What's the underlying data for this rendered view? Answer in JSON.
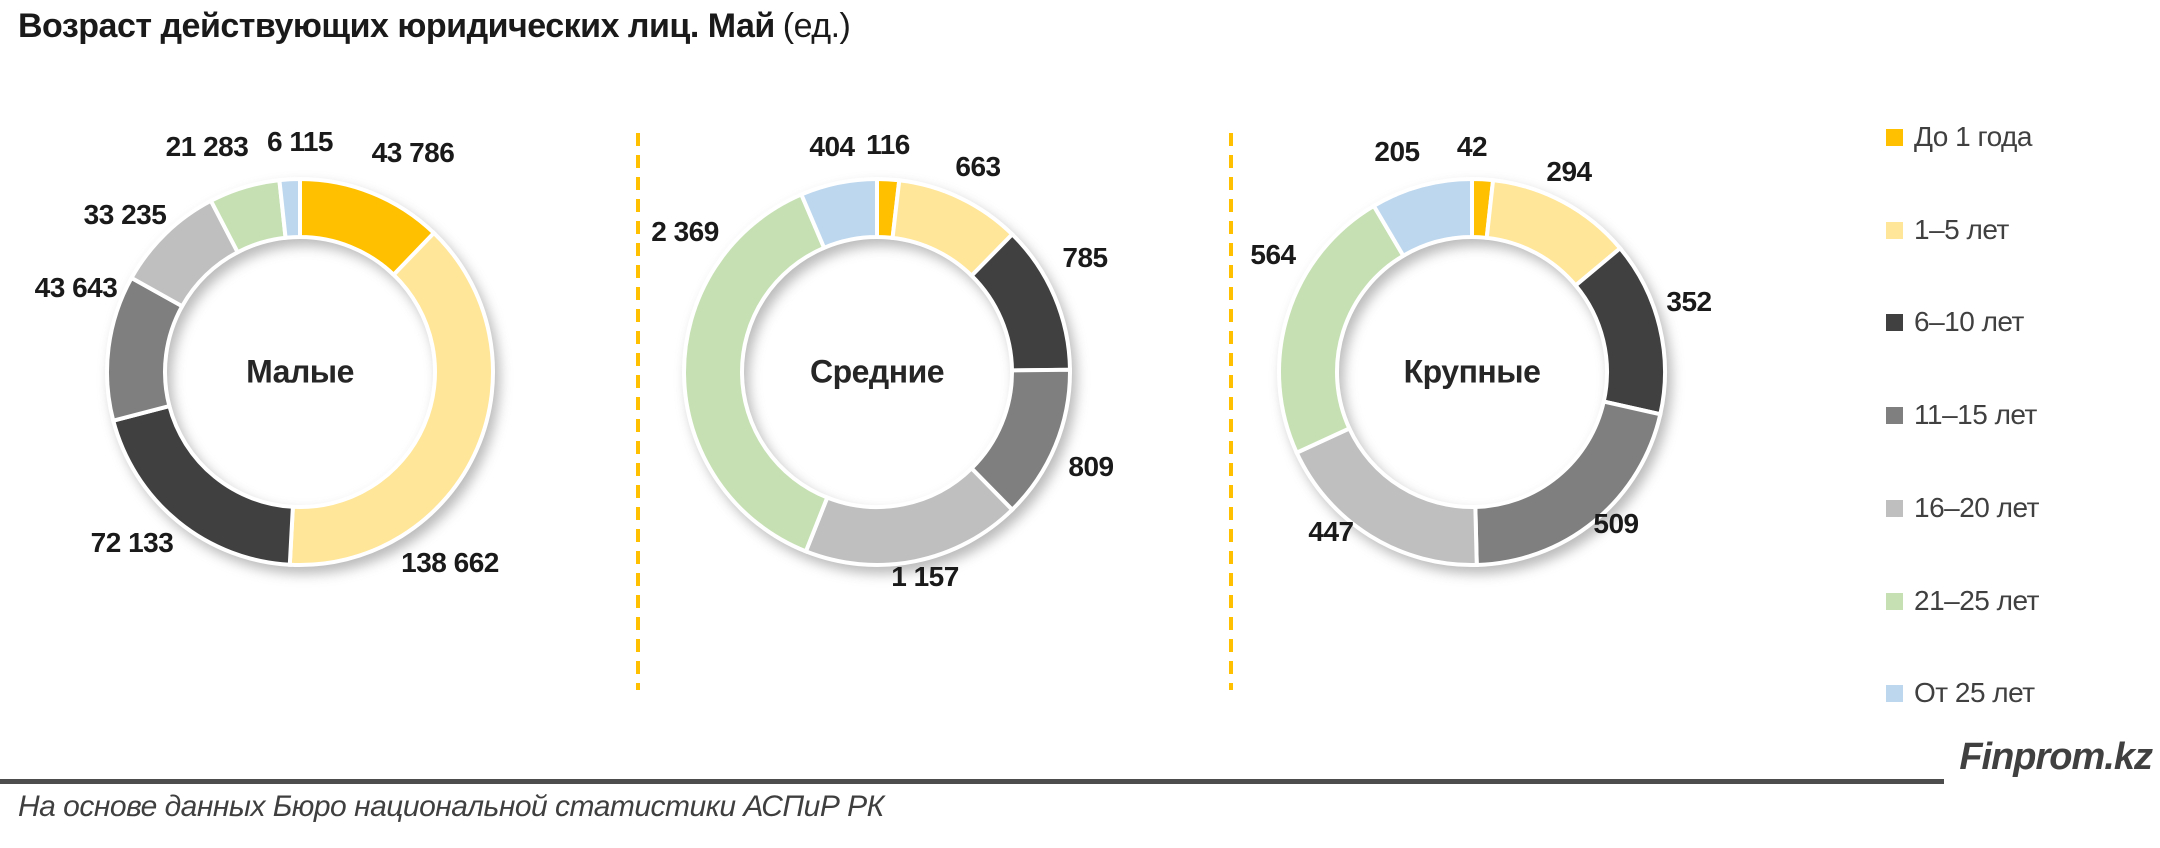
{
  "title": {
    "bold": "Возраст действующих юридических лиц. Май",
    "units": "(ед.)"
  },
  "legend": [
    {
      "label": "До 1 года",
      "color": "#FFC000"
    },
    {
      "label": "1–5 лет",
      "color": "#FFE699"
    },
    {
      "label": "6–10 лет",
      "color": "#404040"
    },
    {
      "label": "11–15 лет",
      "color": "#7F7F7F"
    },
    {
      "label": "16–20 лет",
      "color": "#BFBFBF"
    },
    {
      "label": "21–25 лет",
      "color": "#C6E0B4"
    },
    {
      "label": "От 25 лет",
      "color": "#BDD7EE"
    }
  ],
  "chart_data": {
    "type": "pie",
    "subtype": "donut",
    "title": "Возраст действующих юридических лиц. Май (ед.)",
    "legend_position": "right",
    "categories": [
      "До 1 года",
      "1–5 лет",
      "6–10 лет",
      "11–15 лет",
      "16–20 лет",
      "21–25 лет",
      "От 25 лет"
    ],
    "colors": [
      "#FFC000",
      "#FFE699",
      "#404040",
      "#7F7F7F",
      "#BFBFBF",
      "#C6E0B4",
      "#BDD7EE"
    ],
    "charts": [
      {
        "name": "Малые",
        "values": [
          43786,
          138662,
          72133,
          43643,
          33235,
          21283,
          6115
        ],
        "labels": [
          "43 786",
          "138 662",
          "72 133",
          "43 643",
          "33 235",
          "21 283",
          "6 115"
        ]
      },
      {
        "name": "Средние",
        "values": [
          116,
          663,
          785,
          809,
          1157,
          2369,
          404
        ],
        "labels": [
          "116",
          "663",
          "785",
          "809",
          "1 157",
          "2 369",
          "404"
        ]
      },
      {
        "name": "Крупные",
        "values": [
          42,
          294,
          352,
          509,
          447,
          564,
          205
        ],
        "labels": [
          "42",
          "294",
          "352",
          "509",
          "447",
          "564",
          "205"
        ]
      }
    ]
  },
  "footer": {
    "source": "На основе данных Бюро национальной статистики АСПиР РК",
    "brand": "Finprom.kz"
  }
}
